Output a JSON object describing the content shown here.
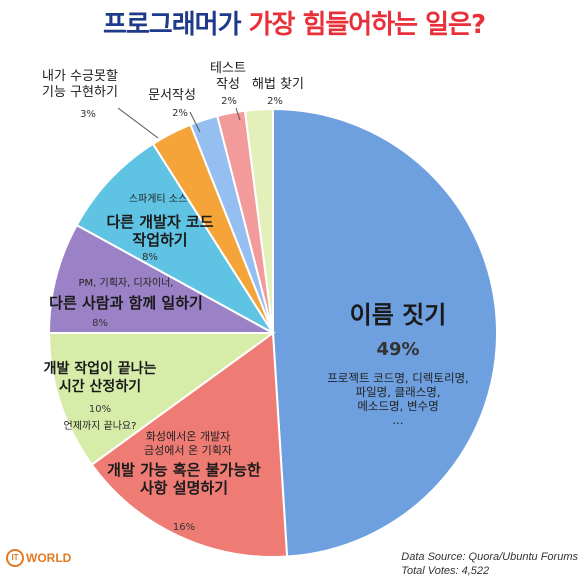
{
  "title": {
    "part1": "프로그래머가",
    "part2": "가장 힘들어하는 일은?"
  },
  "chart_data": {
    "type": "pie",
    "slices": [
      {
        "key": "naming",
        "label": "이름 짓기",
        "value": 49,
        "value_label": "49%",
        "note": "프로젝트 코드명, 디렉토리명,\n파일명, 클래스명,\n메소드명, 변수명\n...",
        "color": "#6e9fdf"
      },
      {
        "key": "explain",
        "label": "개발 가능 혹은 불가능한\n사항 설명하기",
        "value": 16,
        "value_label": "16%",
        "note": "화성에서온 개발자\n금성에서 온 기획자",
        "color": "#ee7c74"
      },
      {
        "key": "estimate",
        "label": "개발 작업이 끝나는\n시간 산정하기",
        "value": 10,
        "value_label": "10%",
        "note": "언제까지 끝나요?",
        "color": "#d8ecaa"
      },
      {
        "key": "work_with_others",
        "label": "다른 사람과 함께 일하기",
        "value": 8,
        "value_label": "8%",
        "note": "PM, 기획자, 디자이너,",
        "color": "#9b82c6"
      },
      {
        "key": "others_code",
        "label": "다른 개발자 코드\n작업하기",
        "value": 8,
        "value_label": "8%",
        "note": "스파게티 소스",
        "color": "#5fc3e4"
      },
      {
        "key": "cannot_implement",
        "label": "내가 수긍못할\n기능 구현하기",
        "value": 3,
        "value_label": "3%",
        "note": "",
        "color": "#f5a43a"
      },
      {
        "key": "docs",
        "label": "문서작성",
        "value": 2,
        "value_label": "2%",
        "note": "",
        "color": "#95bff0"
      },
      {
        "key": "test",
        "label": "테스트\n작성",
        "value": 2,
        "value_label": "2%",
        "note": "",
        "color": "#f39a9a"
      },
      {
        "key": "solution",
        "label": "해법 찾기",
        "value": 2,
        "value_label": "2%",
        "note": "",
        "color": "#e4f0b9"
      }
    ]
  },
  "logo": {
    "circle": "IT",
    "text": "WORLD"
  },
  "source": {
    "line1": "Data Source: Quora/Ubuntu Forums",
    "line2": "Total Votes: 4,522"
  }
}
